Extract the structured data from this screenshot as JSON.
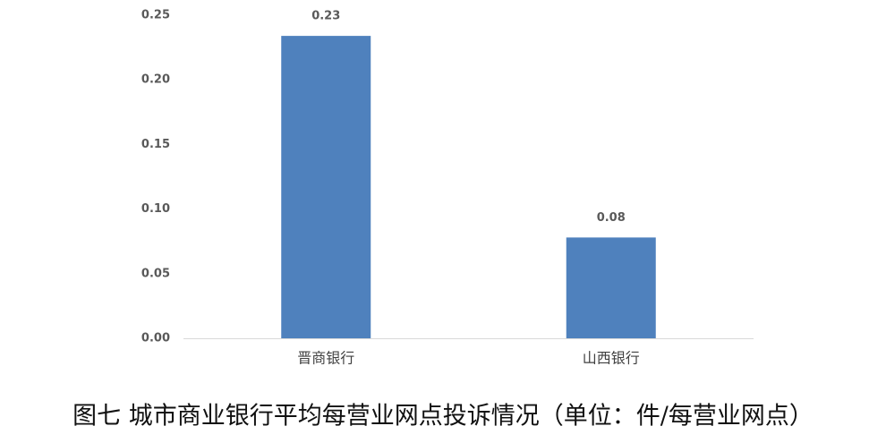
{
  "chart_data": {
    "type": "bar",
    "title": "图七 城市商业银行平均每营业网点投诉情况（单位：件/每营业网点）",
    "categories": [
      "晋商银行",
      "山西银行"
    ],
    "values": [
      0.234,
      0.078
    ],
    "value_labels": [
      "0.23",
      "0.08"
    ],
    "color": "#4f81bd",
    "ylim": [
      0,
      0.25
    ],
    "yticks": [
      {
        "value": 0,
        "label": "0.00"
      },
      {
        "value": 0.05,
        "label": "0.05"
      },
      {
        "value": 0.1,
        "label": "0.10"
      },
      {
        "value": 0.15,
        "label": "0.15"
      },
      {
        "value": 0.2,
        "label": "0.20"
      },
      {
        "value": 0.25,
        "label": "0.25"
      }
    ],
    "grid": false
  }
}
